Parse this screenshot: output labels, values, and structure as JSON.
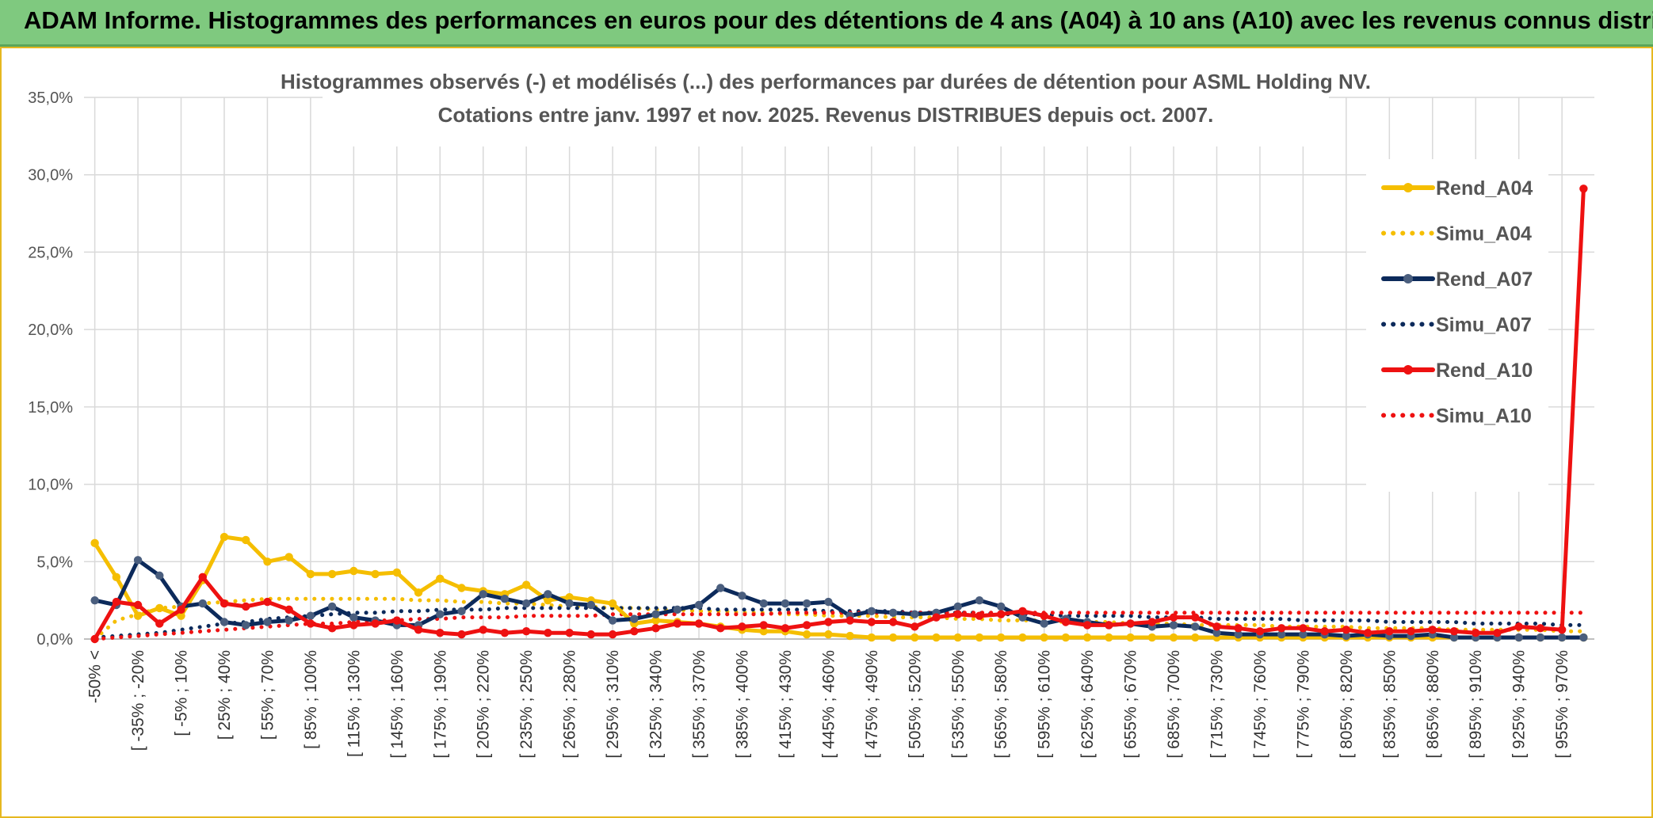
{
  "header": {
    "title": "ADAM Informe. Histogrammes des performances en euros pour des détentions de 4 ans (A04) à 10 ans (A10) avec les revenus connus distribués"
  },
  "chart_data": {
    "type": "line",
    "title": "Histogrammes observés (-) et modélisés (...) des performances par durées de détention pour ASML Holding NV.",
    "subtitle": "Cotations entre janv. 1997 et nov. 2025. Revenus DISTRIBUES depuis oct. 2007.",
    "ylim": [
      0,
      35
    ],
    "y_ticks": [
      "0,0%",
      "5,0%",
      "10,0%",
      "15,0%",
      "20,0%",
      "25,0%",
      "30,0%",
      "35,0%"
    ],
    "x_tick_labels": [
      "-50% <",
      "[ -35% ; -20%",
      "[ -5% ; 10%",
      "[ 25% ; 40%",
      "[ 55% ; 70%",
      "[ 85% ; 100%",
      "[ 115% ; 130%",
      "[ 145% ; 160%",
      "[ 175% ; 190%",
      "[ 205% ; 220%",
      "[ 235% ; 250%",
      "[ 265% ; 280%",
      "[ 295% ; 310%",
      "[ 325% ; 340%",
      "[ 355% ; 370%",
      "[ 385% ; 400%",
      "[ 415% ; 430%",
      "[ 445% ; 460%",
      "[ 475% ; 490%",
      "[ 505% ; 520%",
      "[ 535% ; 550%",
      "[ 565% ; 580%",
      "[ 595% ; 610%",
      "[ 625% ; 640%",
      "[ 655% ; 670%",
      "[ 685% ; 700%",
      "[ 715% ; 730%",
      "[ 745% ; 760%",
      "[ 775% ; 790%",
      "[ 805% ; 820%",
      "[ 835% ; 850%",
      "[ 865% ; 880%",
      "[ 895% ; 910%",
      "[ 925% ; 940%",
      "[ 955% ; 970%"
    ],
    "n_points": 70,
    "series": [
      {
        "name": "Rend_A04",
        "color": "#F5BE00",
        "style": "solid",
        "markers": true,
        "values": [
          6.2,
          4.0,
          1.5,
          2.0,
          1.5,
          3.8,
          6.6,
          6.4,
          5.0,
          5.3,
          4.2,
          4.2,
          4.4,
          4.2,
          4.3,
          3.0,
          3.9,
          3.3,
          3.1,
          2.9,
          3.5,
          2.5,
          2.7,
          2.5,
          2.3,
          1.0,
          1.2,
          1.1,
          1.0,
          0.8,
          0.6,
          0.5,
          0.5,
          0.3,
          0.3,
          0.2,
          0.1,
          0.1,
          0.1,
          0.1,
          0.1,
          0.1,
          0.1,
          0.1,
          0.1,
          0.1,
          0.1,
          0.1,
          0.1,
          0.1,
          0.1,
          0.1,
          0.1,
          0.1,
          0.1,
          0.1,
          0.1,
          0.1,
          0.1,
          0.1,
          0.1,
          0.1,
          0.1,
          0.1,
          0.1,
          0.1,
          0.1,
          0.1,
          0.1,
          0.1
        ]
      },
      {
        "name": "Simu_A04",
        "color": "#F5BE00",
        "style": "dotted",
        "markers": false,
        "values": [
          0.0,
          1.2,
          1.6,
          2.0,
          2.1,
          2.3,
          2.4,
          2.5,
          2.6,
          2.6,
          2.6,
          2.6,
          2.6,
          2.6,
          2.6,
          2.5,
          2.5,
          2.4,
          2.4,
          2.3,
          2.3,
          2.2,
          2.1,
          2.1,
          2.0,
          2.0,
          1.9,
          1.9,
          1.8,
          1.8,
          1.7,
          1.7,
          1.6,
          1.6,
          1.5,
          1.5,
          1.5,
          1.4,
          1.4,
          1.4,
          1.3,
          1.3,
          1.2,
          1.2,
          1.2,
          1.1,
          1.1,
          1.1,
          1.0,
          1.0,
          1.0,
          0.9,
          0.9,
          0.9,
          0.9,
          0.8,
          0.8,
          0.8,
          0.8,
          0.7,
          0.7,
          0.7,
          0.7,
          0.6,
          0.6,
          0.6,
          0.6,
          0.6,
          0.5,
          0.5
        ]
      },
      {
        "name": "Rend_A07",
        "color": "#0C2A5B",
        "style": "solid",
        "markers": true,
        "values": [
          2.5,
          2.2,
          5.1,
          4.1,
          2.1,
          2.3,
          1.1,
          0.9,
          1.1,
          1.2,
          1.5,
          2.1,
          1.4,
          1.2,
          0.9,
          0.9,
          1.6,
          1.8,
          2.9,
          2.6,
          2.3,
          2.9,
          2.3,
          2.2,
          1.2,
          1.3,
          1.6,
          1.9,
          2.2,
          3.3,
          2.8,
          2.3,
          2.3,
          2.3,
          2.4,
          1.5,
          1.8,
          1.7,
          1.6,
          1.7,
          2.1,
          2.5,
          2.1,
          1.4,
          1.0,
          1.3,
          1.1,
          0.9,
          1.0,
          0.8,
          0.9,
          0.8,
          0.4,
          0.3,
          0.3,
          0.3,
          0.3,
          0.3,
          0.2,
          0.3,
          0.2,
          0.2,
          0.3,
          0.1,
          0.1,
          0.1,
          0.1,
          0.1,
          0.1,
          0.1
        ]
      },
      {
        "name": "Simu_A07",
        "color": "#0C2A5B",
        "style": "dotted",
        "markers": false,
        "values": [
          0.1,
          0.2,
          0.3,
          0.4,
          0.6,
          0.8,
          1.0,
          1.1,
          1.3,
          1.4,
          1.5,
          1.6,
          1.7,
          1.7,
          1.8,
          1.8,
          1.9,
          1.9,
          1.9,
          2.0,
          2.0,
          2.0,
          2.0,
          2.0,
          2.0,
          2.0,
          2.0,
          2.0,
          2.0,
          1.9,
          1.9,
          1.9,
          1.9,
          1.9,
          1.8,
          1.8,
          1.8,
          1.8,
          1.7,
          1.7,
          1.7,
          1.7,
          1.6,
          1.6,
          1.6,
          1.5,
          1.5,
          1.5,
          1.5,
          1.4,
          1.4,
          1.4,
          1.3,
          1.3,
          1.3,
          1.3,
          1.2,
          1.2,
          1.2,
          1.2,
          1.1,
          1.1,
          1.1,
          1.1,
          1.0,
          1.0,
          1.0,
          1.0,
          0.9,
          0.9
        ]
      },
      {
        "name": "Rend_A10",
        "color": "#EE1111",
        "style": "solid",
        "markers": true,
        "values": [
          0.0,
          2.4,
          2.2,
          1.0,
          1.9,
          4.0,
          2.3,
          2.1,
          2.4,
          1.9,
          1.0,
          0.7,
          0.9,
          1.0,
          1.2,
          0.6,
          0.4,
          0.3,
          0.6,
          0.4,
          0.5,
          0.4,
          0.4,
          0.3,
          0.3,
          0.5,
          0.7,
          1.0,
          1.0,
          0.7,
          0.8,
          0.9,
          0.7,
          0.9,
          1.1,
          1.2,
          1.1,
          1.1,
          0.8,
          1.4,
          1.6,
          1.5,
          1.6,
          1.8,
          1.5,
          1.1,
          0.9,
          0.9,
          1.0,
          1.1,
          1.4,
          1.4,
          0.8,
          0.7,
          0.5,
          0.7,
          0.7,
          0.5,
          0.6,
          0.4,
          0.5,
          0.5,
          0.6,
          0.5,
          0.4,
          0.4,
          0.8,
          0.7,
          0.6,
          29.1
        ]
      },
      {
        "name": "Simu_A10",
        "color": "#EE1111",
        "style": "dotted",
        "markers": false,
        "values": [
          0.0,
          0.1,
          0.2,
          0.3,
          0.4,
          0.5,
          0.6,
          0.7,
          0.8,
          0.9,
          1.0,
          1.0,
          1.1,
          1.2,
          1.2,
          1.3,
          1.3,
          1.4,
          1.4,
          1.4,
          1.5,
          1.5,
          1.5,
          1.5,
          1.6,
          1.6,
          1.6,
          1.6,
          1.6,
          1.6,
          1.6,
          1.6,
          1.7,
          1.7,
          1.7,
          1.7,
          1.7,
          1.7,
          1.7,
          1.7,
          1.7,
          1.7,
          1.7,
          1.7,
          1.7,
          1.7,
          1.7,
          1.7,
          1.7,
          1.7,
          1.7,
          1.7,
          1.7,
          1.7,
          1.7,
          1.7,
          1.7,
          1.7,
          1.7,
          1.7,
          1.7,
          1.7,
          1.7,
          1.7,
          1.7,
          1.7,
          1.7,
          1.7,
          1.7,
          1.7
        ]
      }
    ]
  }
}
